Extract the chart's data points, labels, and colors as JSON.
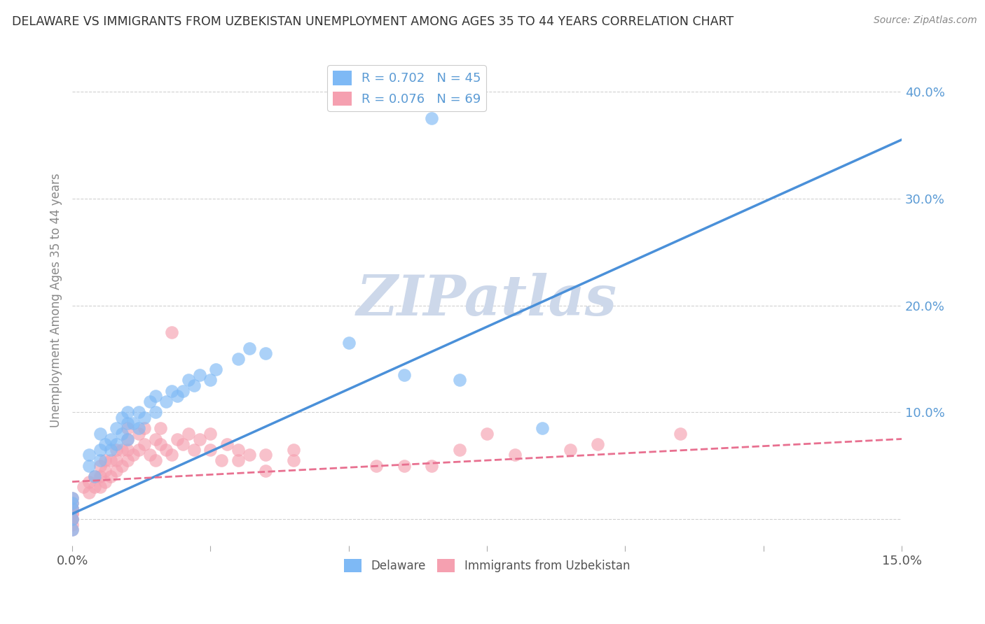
{
  "title": "DELAWARE VS IMMIGRANTS FROM UZBEKISTAN UNEMPLOYMENT AMONG AGES 35 TO 44 YEARS CORRELATION CHART",
  "source_text": "Source: ZipAtlas.com",
  "ylabel": "Unemployment Among Ages 35 to 44 years",
  "xlabel": "",
  "watermark": "ZIPatlas",
  "xlim": [
    0.0,
    0.15
  ],
  "ylim": [
    -0.025,
    0.435
  ],
  "yticks": [
    0.0,
    0.1,
    0.2,
    0.3,
    0.4
  ],
  "ytick_labels": [
    "",
    "10.0%",
    "20.0%",
    "30.0%",
    "40.0%"
  ],
  "xticks": [
    0.0,
    0.025,
    0.05,
    0.075,
    0.1,
    0.125,
    0.15
  ],
  "xtick_labels": [
    "0.0%",
    "",
    "",
    "",
    "",
    "",
    "15.0%"
  ],
  "delaware_color": "#7EB9F5",
  "uzbekistan_color": "#F5A0B0",
  "delaware_line_color": "#4A90D9",
  "uzbekistan_line_color": "#E87090",
  "background_color": "#FFFFFF",
  "grid_color": "#CCCCCC",
  "title_color": "#333333",
  "watermark_color": "#CDD8EA",
  "delaware_scatter_x": [
    0.0,
    0.0,
    0.0,
    0.0,
    0.0,
    0.003,
    0.003,
    0.004,
    0.005,
    0.005,
    0.005,
    0.006,
    0.007,
    0.007,
    0.008,
    0.008,
    0.009,
    0.009,
    0.01,
    0.01,
    0.01,
    0.011,
    0.012,
    0.012,
    0.013,
    0.014,
    0.015,
    0.015,
    0.017,
    0.018,
    0.019,
    0.02,
    0.021,
    0.022,
    0.023,
    0.025,
    0.026,
    0.03,
    0.032,
    0.035,
    0.05,
    0.06,
    0.065,
    0.07,
    0.085
  ],
  "delaware_scatter_y": [
    0.01,
    0.015,
    0.02,
    0.0,
    -0.01,
    0.05,
    0.06,
    0.04,
    0.055,
    0.065,
    0.08,
    0.07,
    0.065,
    0.075,
    0.07,
    0.085,
    0.08,
    0.095,
    0.075,
    0.09,
    0.1,
    0.09,
    0.085,
    0.1,
    0.095,
    0.11,
    0.1,
    0.115,
    0.11,
    0.12,
    0.115,
    0.12,
    0.13,
    0.125,
    0.135,
    0.13,
    0.14,
    0.15,
    0.16,
    0.155,
    0.165,
    0.135,
    0.375,
    0.13,
    0.085
  ],
  "uzbekistan_scatter_x": [
    0.0,
    0.0,
    0.0,
    0.0,
    0.0,
    0.0,
    0.0,
    0.0,
    0.0,
    0.0,
    0.002,
    0.003,
    0.003,
    0.004,
    0.004,
    0.005,
    0.005,
    0.005,
    0.006,
    0.006,
    0.006,
    0.007,
    0.007,
    0.008,
    0.008,
    0.008,
    0.009,
    0.009,
    0.01,
    0.01,
    0.01,
    0.01,
    0.011,
    0.012,
    0.012,
    0.013,
    0.013,
    0.014,
    0.015,
    0.015,
    0.016,
    0.016,
    0.017,
    0.018,
    0.018,
    0.019,
    0.02,
    0.021,
    0.022,
    0.023,
    0.025,
    0.025,
    0.027,
    0.028,
    0.03,
    0.03,
    0.032,
    0.035,
    0.035,
    0.04,
    0.04,
    0.055,
    0.06,
    0.065,
    0.07,
    0.075,
    0.08,
    0.09,
    0.095,
    0.11
  ],
  "uzbekistan_scatter_y": [
    0.0,
    0.005,
    0.01,
    0.015,
    0.02,
    0.0,
    0.005,
    0.01,
    -0.005,
    -0.01,
    0.03,
    0.025,
    0.035,
    0.03,
    0.04,
    0.03,
    0.04,
    0.05,
    0.035,
    0.045,
    0.055,
    0.04,
    0.055,
    0.045,
    0.055,
    0.065,
    0.05,
    0.065,
    0.055,
    0.065,
    0.075,
    0.085,
    0.06,
    0.065,
    0.08,
    0.07,
    0.085,
    0.06,
    0.055,
    0.075,
    0.07,
    0.085,
    0.065,
    0.06,
    0.175,
    0.075,
    0.07,
    0.08,
    0.065,
    0.075,
    0.065,
    0.08,
    0.055,
    0.07,
    0.055,
    0.065,
    0.06,
    0.045,
    0.06,
    0.055,
    0.065,
    0.05,
    0.05,
    0.05,
    0.065,
    0.08,
    0.06,
    0.065,
    0.07,
    0.08
  ],
  "delaware_line_x": [
    0.0,
    0.15
  ],
  "delaware_line_y": [
    0.005,
    0.355
  ],
  "uzbekistan_line_x": [
    0.0,
    0.15
  ],
  "uzbekistan_line_y": [
    0.035,
    0.075
  ]
}
